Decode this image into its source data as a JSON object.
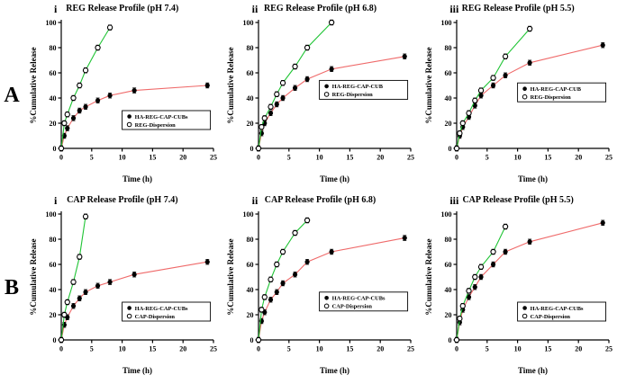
{
  "rows": [
    "A",
    "B"
  ],
  "chart_data": [
    {
      "panel": "i",
      "row": "A",
      "type": "line",
      "title": "REG Release Profile (pH 7.4)",
      "xlabel": "Time (h)",
      "ylabel": "%Cumulative Release",
      "xlim": [
        0,
        25
      ],
      "ylim": [
        0,
        100
      ],
      "xticks": [
        0,
        5,
        10,
        15,
        20,
        25
      ],
      "yticks": [
        0,
        20,
        40,
        60,
        80,
        100
      ],
      "grid": false,
      "legend": {
        "x": 0.4,
        "y": 0.7,
        "entries": [
          {
            "label": "HA-REG-CAP-CUBs",
            "marker": "filled"
          },
          {
            "label": "REG-Dispersion",
            "marker": "open"
          }
        ]
      },
      "series": [
        {
          "name": "HA-REG-CAP-CUBs",
          "color": "#ef6a6a",
          "marker": "filled",
          "x": [
            0,
            0.5,
            1,
            2,
            3,
            4,
            6,
            8,
            12,
            24
          ],
          "y": [
            0,
            10,
            16,
            24,
            30,
            33,
            38,
            42,
            46,
            50
          ],
          "err": 2
        },
        {
          "name": "REG-Dispersion",
          "color": "#1fc434",
          "marker": "open",
          "x": [
            0,
            0.5,
            1,
            2,
            3,
            4,
            6,
            8
          ],
          "y": [
            0,
            20,
            27,
            40,
            50,
            62,
            80,
            96
          ],
          "err": 2
        }
      ]
    },
    {
      "panel": "ii",
      "row": "A",
      "type": "line",
      "title": "REG Release Profile (pH 6.8)",
      "xlabel": "Time (h)",
      "ylabel": "%Cumulative Release",
      "xlim": [
        0,
        25
      ],
      "ylim": [
        0,
        100
      ],
      "xticks": [
        0,
        5,
        10,
        15,
        20,
        25
      ],
      "yticks": [
        0,
        20,
        40,
        60,
        80,
        100
      ],
      "grid": false,
      "legend": {
        "x": 0.4,
        "y": 0.46,
        "entries": [
          {
            "label": "HA-REG-CAP-CUB",
            "marker": "filled"
          },
          {
            "label": "REG-Dispersion",
            "marker": "open"
          }
        ]
      },
      "series": [
        {
          "name": "HA-REG-CAP-CUB",
          "color": "#ef6a6a",
          "marker": "filled",
          "x": [
            0,
            0.5,
            1,
            2,
            3,
            4,
            6,
            8,
            12,
            24
          ],
          "y": [
            0,
            12,
            20,
            28,
            35,
            40,
            48,
            55,
            63,
            73
          ],
          "err": 2
        },
        {
          "name": "REG-Dispersion",
          "color": "#1fc434",
          "marker": "open",
          "x": [
            0,
            0.5,
            1,
            2,
            3,
            4,
            6,
            8,
            12
          ],
          "y": [
            0,
            17,
            24,
            33,
            43,
            52,
            65,
            80,
            100
          ],
          "err": 2
        }
      ]
    },
    {
      "panel": "iii",
      "row": "A",
      "type": "line",
      "title": "REG Release Profile (pH 5.5)",
      "xlabel": "Time (h)",
      "ylabel": "%Cumulative Release",
      "xlim": [
        0,
        25
      ],
      "ylim": [
        0,
        100
      ],
      "xticks": [
        0,
        5,
        10,
        15,
        20,
        25
      ],
      "yticks": [
        0,
        20,
        40,
        60,
        80,
        100
      ],
      "grid": false,
      "legend": {
        "x": 0.4,
        "y": 0.48,
        "entries": [
          {
            "label": "HA-REG-CAP-CUB",
            "marker": "filled"
          },
          {
            "label": "REG-Dispersion",
            "marker": "open"
          }
        ]
      },
      "series": [
        {
          "name": "HA-REG-CAP-CUB",
          "color": "#ef6a6a",
          "marker": "filled",
          "x": [
            0,
            0.5,
            1,
            2,
            3,
            4,
            6,
            8,
            12,
            24
          ],
          "y": [
            0,
            10,
            17,
            25,
            34,
            42,
            50,
            58,
            68,
            82
          ],
          "err": 2
        },
        {
          "name": "REG-Dispersion",
          "color": "#1fc434",
          "marker": "open",
          "x": [
            0,
            0.5,
            1,
            2,
            3,
            4,
            6,
            8,
            12
          ],
          "y": [
            0,
            12,
            20,
            28,
            38,
            46,
            56,
            73,
            95
          ],
          "err": 2
        }
      ]
    },
    {
      "panel": "i",
      "row": "B",
      "type": "line",
      "title": "CAP Release Profile (pH 7.4)",
      "xlabel": "Time (h)",
      "ylabel": "%Cumulative Release",
      "xlim": [
        0,
        25
      ],
      "ylim": [
        0,
        100
      ],
      "xticks": [
        0,
        5,
        10,
        15,
        20,
        25
      ],
      "yticks": [
        0,
        20,
        40,
        60,
        80,
        100
      ],
      "grid": false,
      "legend": {
        "x": 0.4,
        "y": 0.7,
        "entries": [
          {
            "label": "HA-REG-CAP-CUBs",
            "marker": "filled"
          },
          {
            "label": "CAP-Dispersion",
            "marker": "open"
          }
        ]
      },
      "series": [
        {
          "name": "HA-REG-CAP-CUBs",
          "color": "#ef6a6a",
          "marker": "filled",
          "x": [
            0,
            0.5,
            1,
            2,
            3,
            4,
            6,
            8,
            12,
            24
          ],
          "y": [
            0,
            12,
            18,
            27,
            33,
            38,
            43,
            46,
            52,
            62
          ],
          "err": 2
        },
        {
          "name": "CAP-Dispersion",
          "color": "#1fc434",
          "marker": "open",
          "x": [
            0,
            0.5,
            1,
            2,
            3,
            4
          ],
          "y": [
            0,
            20,
            30,
            46,
            66,
            98
          ],
          "err": 2
        }
      ]
    },
    {
      "panel": "ii",
      "row": "B",
      "type": "line",
      "title": "CAP Release Profile (pH 6.8)",
      "xlabel": "Time (h)",
      "ylabel": "%Cumulative Release",
      "xlim": [
        0,
        25
      ],
      "ylim": [
        0,
        100
      ],
      "xticks": [
        0,
        5,
        10,
        15,
        20,
        25
      ],
      "yticks": [
        0,
        20,
        40,
        60,
        80,
        100
      ],
      "grid": false,
      "legend": {
        "x": 0.4,
        "y": 0.62,
        "entries": [
          {
            "label": "HA-REG-CAP-CUBs",
            "marker": "filled"
          },
          {
            "label": "CAP-Dispersion",
            "marker": "open"
          }
        ]
      },
      "series": [
        {
          "name": "HA-REG-CAP-CUBs",
          "color": "#ef6a6a",
          "marker": "filled",
          "x": [
            0,
            0.5,
            1,
            2,
            3,
            4,
            6,
            8,
            12,
            24
          ],
          "y": [
            0,
            15,
            22,
            32,
            38,
            45,
            52,
            62,
            70,
            81
          ],
          "err": 2
        },
        {
          "name": "CAP-Dispersion",
          "color": "#1fc434",
          "marker": "open",
          "x": [
            0,
            0.5,
            1,
            2,
            3,
            4,
            6,
            8
          ],
          "y": [
            0,
            24,
            34,
            48,
            60,
            70,
            85,
            95
          ],
          "err": 2
        }
      ]
    },
    {
      "panel": "iii",
      "row": "B",
      "type": "line",
      "title": "CAP Release Profile (pH 5.5)",
      "xlabel": "Time (h)",
      "ylabel": "%Cumulative Release",
      "xlim": [
        0,
        25
      ],
      "ylim": [
        0,
        100
      ],
      "xticks": [
        0,
        5,
        10,
        15,
        20,
        25
      ],
      "yticks": [
        0,
        20,
        40,
        60,
        80,
        100
      ],
      "grid": false,
      "legend": {
        "x": 0.4,
        "y": 0.7,
        "entries": [
          {
            "label": "HA-REG-CAP-CUBs",
            "marker": "filled"
          },
          {
            "label": "CAP-Dispersion",
            "marker": "open"
          }
        ]
      },
      "series": [
        {
          "name": "HA-REG-CAP-CUBs",
          "color": "#ef6a6a",
          "marker": "filled",
          "x": [
            0,
            0.5,
            1,
            2,
            3,
            4,
            6,
            8,
            12,
            24
          ],
          "y": [
            0,
            14,
            24,
            34,
            42,
            50,
            60,
            70,
            78,
            93
          ],
          "err": 2
        },
        {
          "name": "CAP-Dispersion",
          "color": "#1fc434",
          "marker": "open",
          "x": [
            0,
            0.5,
            1,
            2,
            3,
            4,
            6,
            8
          ],
          "y": [
            0,
            17,
            27,
            39,
            50,
            58,
            70,
            90
          ],
          "err": 2
        }
      ]
    }
  ],
  "colors": {
    "cubs_line": "#ef6a6a",
    "dispersion_line": "#1fc434",
    "marker_filled": "#000000",
    "marker_open_fill": "#ffffff",
    "axis": "#000000"
  }
}
